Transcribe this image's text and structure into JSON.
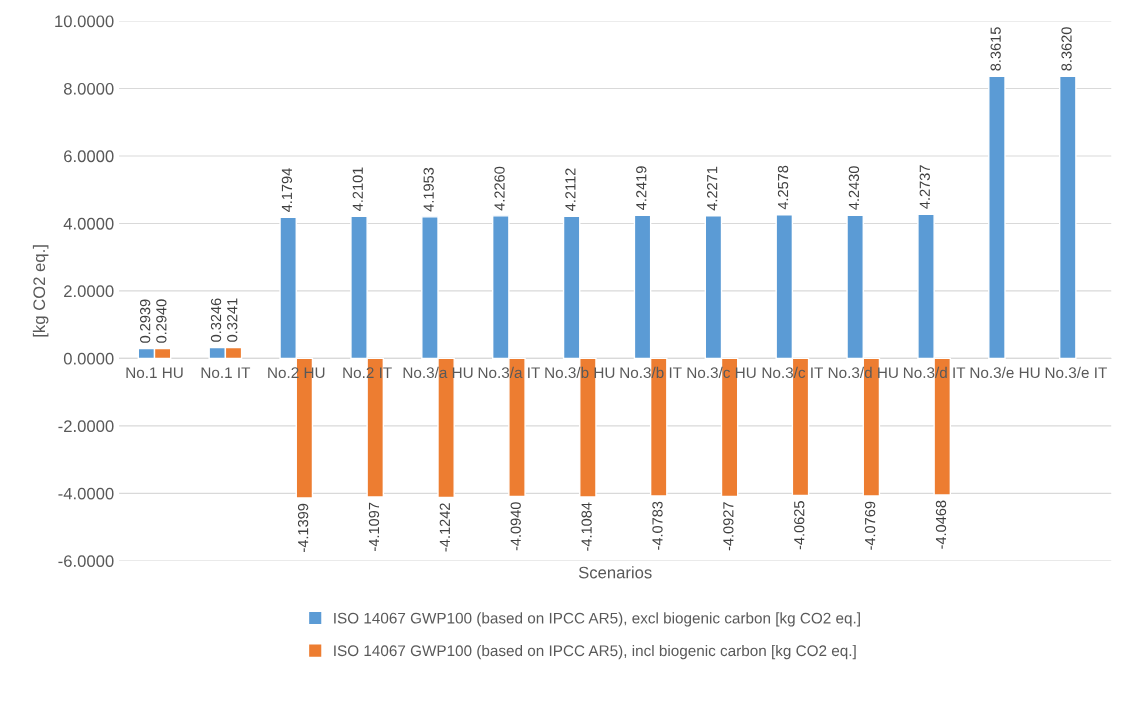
{
  "chart_data": {
    "type": "bar",
    "xlabel": "Scenarios",
    "ylabel": "[kg CO2 eq.]",
    "categories": [
      "No.1 HU",
      "No.1 IT",
      "No.2 HU",
      "No.2 IT",
      "No.3/a HU",
      "No.3/a IT",
      "No.3/b HU",
      "No.3/b IT",
      "No.3/c HU",
      "No.3/c IT",
      "No.3/d HU",
      "No.3/d IT",
      "No.3/e HU",
      "No.3/e IT"
    ],
    "series": [
      {
        "name": "ISO 14067 GWP100 (based on IPCC AR5), excl biogenic carbon [kg CO2 eq.]",
        "color": "#5b9bd5",
        "values": [
          0.2939,
          0.3246,
          4.1794,
          4.2101,
          4.1953,
          4.226,
          4.2112,
          4.2419,
          4.2271,
          4.2578,
          4.243,
          4.2737,
          8.3615,
          8.362
        ],
        "value_labels": [
          "0.2939",
          "0.3246",
          "4.1794",
          "4.2101",
          "4.1953",
          "4.2260",
          "4.2112",
          "4.2419",
          "4.2271",
          "4.2578",
          "4.2430",
          "4.2737",
          "8.3615",
          "8.3620"
        ]
      },
      {
        "name": "ISO 14067 GWP100 (based on IPCC AR5), incl biogenic carbon [kg CO2 eq.]",
        "color": "#ed7d31",
        "values": [
          0.294,
          0.3241,
          -4.1399,
          -4.1097,
          -4.1242,
          -4.094,
          -4.1084,
          -4.0783,
          -4.0927,
          -4.0625,
          -4.0769,
          -4.0468,
          null,
          null
        ],
        "value_labels": [
          "0.2940",
          "0.3241",
          "-4.1399",
          "-4.1097",
          "-4.1242",
          "-4.0940",
          "-4.1084",
          "-4.0783",
          "-4.0927",
          "-4.0625",
          "-4.0769",
          "-4.0468",
          null,
          null
        ]
      }
    ],
    "ylim": [
      -6,
      10
    ],
    "yticks": [
      {
        "value": -6,
        "label": "-6.0000"
      },
      {
        "value": -4,
        "label": "-4.0000"
      },
      {
        "value": -2,
        "label": "-2.0000"
      },
      {
        "value": 0,
        "label": "0.0000"
      },
      {
        "value": 2,
        "label": "2.0000"
      },
      {
        "value": 4,
        "label": "4.0000"
      },
      {
        "value": 6,
        "label": "6.0000"
      },
      {
        "value": 8,
        "label": "8.0000"
      },
      {
        "value": 10,
        "label": "10.0000"
      }
    ],
    "grid": "y",
    "legend": "bottom"
  }
}
